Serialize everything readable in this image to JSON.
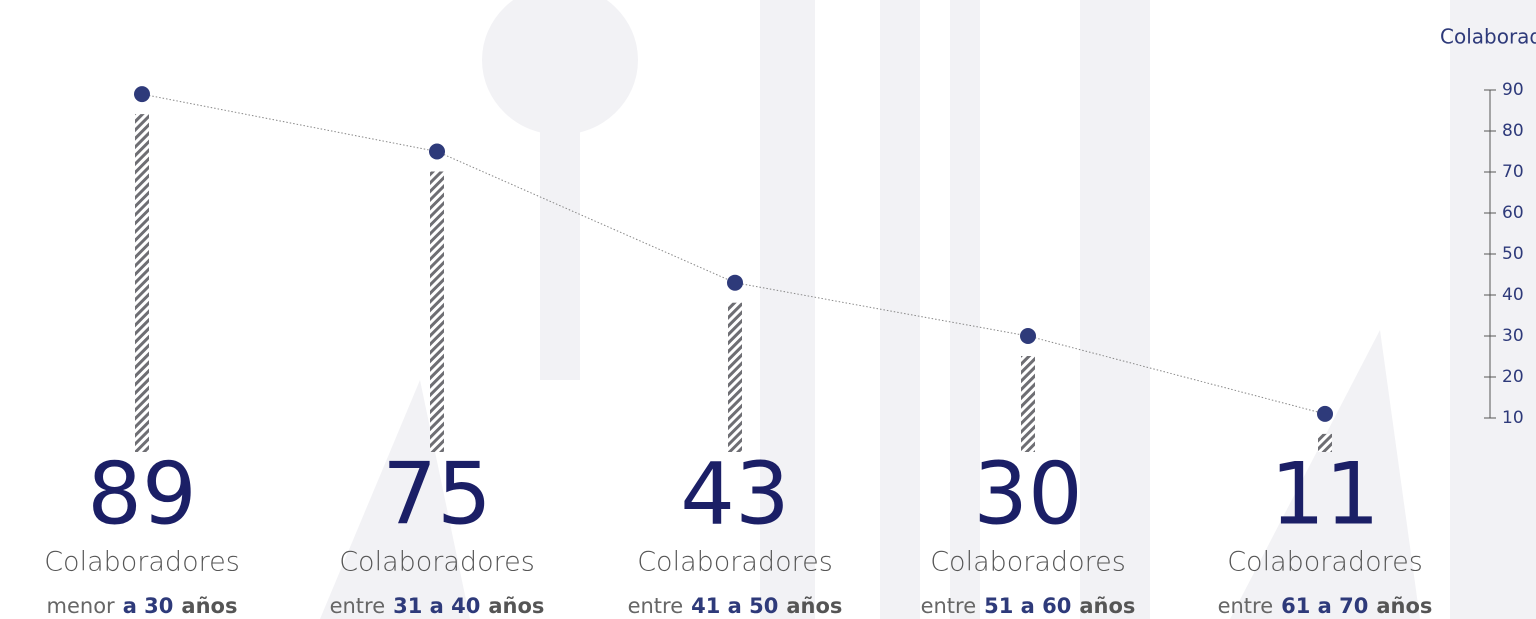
{
  "chart_data": {
    "type": "line",
    "y_axis_label": "Colaboradores",
    "value_caption": "Colaboradores",
    "categories": [
      {
        "pre": "menor",
        "range": "a 30",
        "post": "años"
      },
      {
        "pre": "entre",
        "range": "31 a 40",
        "post": "años"
      },
      {
        "pre": "entre",
        "range": "41 a 50",
        "post": "años"
      },
      {
        "pre": "entre",
        "range": "51 a 60",
        "post": "años"
      },
      {
        "pre": "entre",
        "range": "61 a 70",
        "post": "años"
      }
    ],
    "values": [
      89,
      75,
      43,
      30,
      11
    ],
    "color": "#2e3a7a",
    "ylim": [
      10,
      90
    ],
    "yticks": [
      10,
      20,
      30,
      40,
      50,
      60,
      70,
      80,
      90
    ]
  }
}
